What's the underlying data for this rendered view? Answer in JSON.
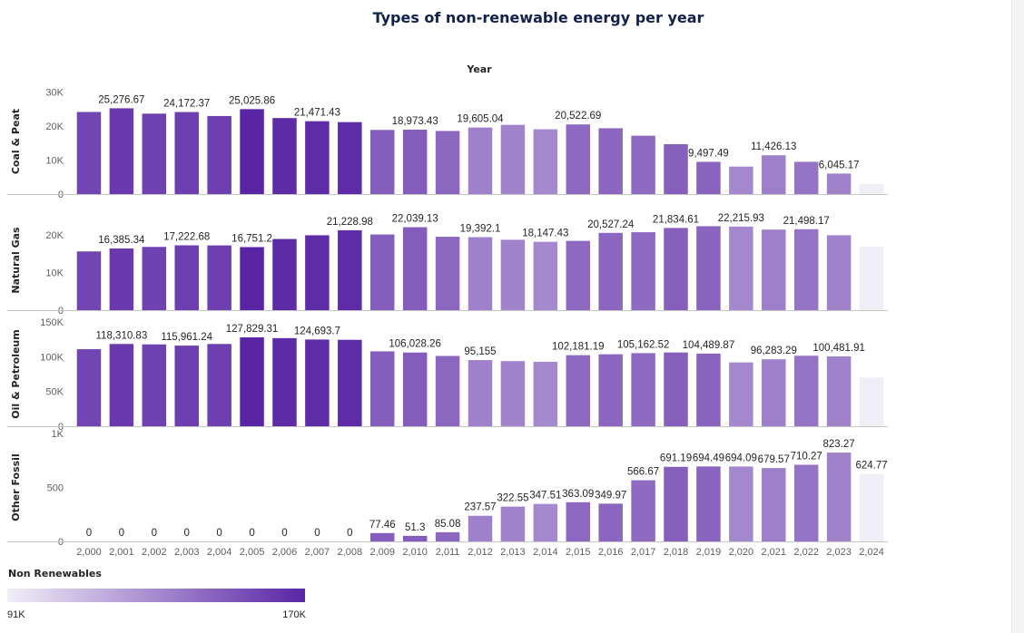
{
  "chart_data": {
    "type": "bar",
    "title": "Types of non-renewable energy per year",
    "column_header": "Year",
    "categories": [
      "2,000",
      "2,001",
      "2,002",
      "2,003",
      "2,004",
      "2,005",
      "2,006",
      "2,007",
      "2,008",
      "2,009",
      "2,010",
      "2,011",
      "2,012",
      "2,013",
      "2,014",
      "2,015",
      "2,016",
      "2,017",
      "2,018",
      "2,019",
      "2,020",
      "2,021",
      "2,022",
      "2,023",
      "2,024"
    ],
    "color_legend": {
      "title": "Non Renewables",
      "min_label": "91K",
      "max_label": "170K",
      "min": 91000,
      "max": 170000,
      "color_low": "#f1eef8",
      "color_high": "#5a25a5"
    },
    "color_value_by_year": [
      157600,
      162000,
      158700,
      160100,
      159900,
      170000,
      167800,
      167300,
      167200,
      147600,
      148100,
      144000,
      133900,
      133000,
      130600,
      143300,
      144300,
      142900,
      147100,
      145400,
      131200,
      134400,
      139100,
      133500,
      91000
    ],
    "panels": [
      {
        "name": "Coal & Peat",
        "yticks": [
          {
            "value": 0,
            "label": "0"
          },
          {
            "value": 10000,
            "label": "10K"
          },
          {
            "value": 20000,
            "label": "20K"
          },
          {
            "value": 30000,
            "label": "30K"
          }
        ],
        "ymax": 31000,
        "values": [
          24200,
          25276.67,
          23700,
          24172.37,
          23000,
          25025.86,
          22400,
          21471.43,
          21200,
          18900,
          18973.43,
          18600,
          19605.04,
          20400,
          19100,
          20522.69,
          19400,
          17200,
          14700,
          9497.49,
          8100,
          11426.13,
          9500,
          6045.17,
          3000
        ],
        "labels": [
          "",
          "25,276.67",
          "",
          "24,172.37",
          "",
          "25,025.86",
          "",
          "21,471.43",
          "",
          "",
          "18,973.43",
          "",
          "19,605.04",
          "",
          "",
          "20,522.69",
          "",
          "",
          "",
          "9,497.49",
          "",
          "11,426.13",
          "",
          "6,045.17",
          ""
        ]
      },
      {
        "name": "Natural Gas",
        "yticks": [
          {
            "value": 0,
            "label": "0"
          },
          {
            "value": 10000,
            "label": "10K"
          },
          {
            "value": 20000,
            "label": "20K"
          }
        ],
        "ymax": 26500,
        "values": [
          15600,
          16385.34,
          16800,
          17222.68,
          17200,
          16751.2,
          18900,
          19900,
          21228.98,
          20100,
          22039.13,
          19500,
          19392.1,
          18700,
          18147.43,
          18400,
          20527.24,
          20700,
          21834.61,
          22300,
          22215.93,
          21400,
          21498.17,
          19900,
          16900
        ],
        "labels": [
          "",
          "16,385.34",
          "",
          "17,222.68",
          "",
          "16,751.2",
          "",
          "",
          "21,228.98",
          "",
          "22,039.13",
          "",
          "19,392.1",
          "",
          "18,147.43",
          "",
          "20,527.24",
          "",
          "21,834.61",
          "",
          "22,215.93",
          "",
          "21,498.17",
          "",
          ""
        ]
      },
      {
        "name": "Oil & Petroleum",
        "yticks": [
          {
            "value": 0,
            "label": "0"
          },
          {
            "value": 50000,
            "label": "50K"
          },
          {
            "value": 100000,
            "label": "100K"
          },
          {
            "value": 150000,
            "label": "150K"
          }
        ],
        "ymax": 150000,
        "values": [
          110800,
          118310.83,
          117700,
          115961.24,
          118300,
          127829.31,
          126700,
          124693.7,
          124300,
          107700,
          106028.26,
          101100,
          95155,
          93700,
          92700,
          102181.19,
          103500,
          105162.52,
          106100,
          104489.87,
          91800,
          96283.29,
          101400,
          100481.91,
          70000
        ],
        "labels": [
          "",
          "118,310.83",
          "",
          "115,961.24",
          "",
          "127,829.31",
          "",
          "124,693.7",
          "",
          "",
          "106,028.26",
          "",
          "95,155",
          "",
          "",
          "102,181.19",
          "",
          "105,162.52",
          "",
          "104,489.87",
          "",
          "96,283.29",
          "",
          "100,481.91",
          ""
        ]
      },
      {
        "name": "Other Fossil",
        "yticks": [
          {
            "value": 0,
            "label": "0"
          },
          {
            "value": 500,
            "label": "500"
          },
          {
            "value": 1000,
            "label": "1K"
          }
        ],
        "ymax": 1000,
        "values": [
          0,
          0,
          0,
          0,
          0,
          0,
          0,
          0,
          0,
          77.46,
          51.3,
          85.08,
          237.57,
          322.55,
          347.51,
          363.09,
          349.97,
          566.67,
          691.19,
          694.49,
          694.09,
          679.57,
          710.27,
          823.27,
          624.77
        ],
        "labels": [
          "0",
          "0",
          "0",
          "0",
          "0",
          "0",
          "0",
          "0",
          "0",
          "77.46",
          "51.3",
          "85.08",
          "237.57",
          "322.55",
          "347.51",
          "363.09",
          "349.97",
          "566.67",
          "691.19",
          "694.49",
          "694.09",
          "679.57",
          "710.27",
          "823.27",
          "624.77"
        ]
      }
    ]
  }
}
